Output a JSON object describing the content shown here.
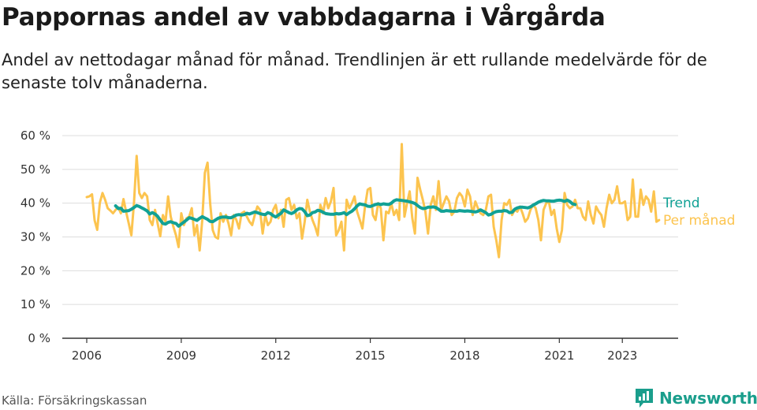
{
  "title": "Pappornas andel av vabbdagarna i Vårgårda",
  "subtitle": "Andel av nettodagar månad för månad. Trendlinjen är ett rullande medelvärde för de senaste tolv månaderna.",
  "source": "Källa: Försäkringskassan",
  "brand": "Newsworthy",
  "colors": {
    "monthly": "#fcc44f",
    "trend": "#11a195",
    "grid": "#dddddd",
    "axis": "#333333",
    "brand": "#1a9e8c"
  },
  "chart_data": {
    "type": "line",
    "ylim": [
      0,
      60
    ],
    "yticks": [
      0,
      10,
      20,
      30,
      40,
      50,
      60
    ],
    "ytick_labels": [
      "0 %",
      "10 %",
      "20 %",
      "30 %",
      "40 %",
      "50 %",
      "60 %"
    ],
    "xlim": [
      2005.5,
      2024.2
    ],
    "xticks": [
      2006,
      2009,
      2012,
      2015,
      2018,
      2021,
      2023
    ],
    "xtick_labels": [
      "2006",
      "2009",
      "2012",
      "2015",
      "2018",
      "2021",
      "2023"
    ],
    "series": [
      {
        "name": "Per månad",
        "key": "monthly",
        "start": "2006-01",
        "values": [
          41.8,
          42.0,
          42.6,
          34.9,
          32.1,
          40.1,
          43.0,
          41.0,
          38.5,
          37.8,
          37.0,
          38.0,
          38.8,
          37.0,
          41.2,
          37.5,
          34.0,
          30.5,
          40.0,
          54.0,
          43.0,
          41.5,
          43.0,
          42.0,
          35.0,
          33.5,
          38.0,
          34.0,
          30.2,
          36.5,
          34.5,
          42.0,
          36.0,
          33.0,
          30.5,
          27.0,
          37.0,
          33.5,
          35.5,
          36.0,
          38.5,
          30.5,
          33.5,
          26.0,
          35.0,
          49.0,
          52.0,
          40.0,
          32.0,
          30.0,
          29.5,
          37.0,
          34.5,
          36.5,
          34.0,
          30.5,
          36.5,
          35.0,
          32.5,
          37.0,
          37.5,
          36.0,
          34.5,
          33.5,
          36.5,
          39.0,
          38.0,
          31.0,
          36.5,
          33.5,
          34.5,
          38.0,
          39.5,
          35.5,
          38.0,
          33.0,
          41.0,
          41.5,
          38.0,
          39.5,
          35.5,
          37.0,
          29.5,
          34.5,
          41.0,
          37.5,
          35.0,
          33.0,
          30.5,
          39.5,
          37.0,
          41.5,
          38.5,
          40.5,
          44.5,
          30.5,
          32.0,
          34.5,
          26.0,
          41.0,
          38.5,
          40.0,
          42.0,
          37.5,
          35.0,
          32.5,
          39.0,
          44.0,
          44.5,
          36.5,
          35.0,
          40.0,
          38.5,
          29.0,
          37.5,
          37.0,
          40.0,
          36.5,
          38.0,
          35.0,
          57.5,
          36.0,
          40.0,
          43.5,
          35.5,
          31.0,
          47.5,
          44.0,
          41.0,
          37.5,
          31.0,
          39.5,
          42.0,
          38.0,
          46.5,
          38.0,
          40.0,
          42.0,
          40.5,
          36.5,
          37.5,
          41.5,
          43.0,
          42.0,
          39.0,
          44.0,
          42.0,
          36.5,
          40.5,
          38.5,
          37.0,
          36.5,
          38.0,
          42.0,
          42.5,
          33.0,
          29.0,
          24.0,
          35.0,
          40.0,
          39.5,
          41.0,
          36.5,
          38.0,
          37.5,
          39.0,
          37.0,
          34.5,
          35.5,
          38.0,
          39.5,
          38.5,
          35.0,
          29.0,
          38.0,
          40.0,
          40.5,
          36.5,
          38.0,
          32.5,
          28.5,
          32.0,
          43.0,
          39.5,
          38.5,
          39.0,
          41.0,
          38.5,
          38.5,
          36.0,
          35.0,
          40.5,
          36.5,
          34.0,
          39.0,
          37.5,
          36.5,
          33.0,
          38.5,
          42.5,
          40.0,
          41.0,
          45.0,
          40.0,
          40.0,
          40.5,
          35.0,
          36.0,
          47.0,
          36.0,
          36.0,
          44.0,
          39.5,
          42.0,
          41.0,
          37.5,
          43.5,
          34.5,
          35.0
        ]
      },
      {
        "name": "Trend",
        "key": "trend",
        "start": "2006-12",
        "values": [
          39.2,
          38.4,
          38.5,
          37.6,
          37.7,
          37.8,
          38.2,
          38.7,
          39.3,
          39.0,
          38.6,
          38.2,
          37.7,
          36.8,
          37.2,
          36.8,
          36.1,
          35.0,
          34.0,
          33.8,
          34.3,
          34.5,
          34.2,
          34.0,
          33.2,
          33.8,
          34.4,
          35.0,
          35.7,
          35.5,
          35.2,
          34.9,
          35.5,
          36.0,
          35.6,
          35.2,
          34.6,
          34.5,
          35.0,
          35.5,
          35.8,
          35.9,
          35.9,
          35.7,
          35.7,
          36.1,
          36.5,
          36.6,
          36.5,
          36.6,
          37.0,
          36.8,
          37.1,
          37.4,
          37.2,
          36.9,
          36.7,
          36.6,
          37.2,
          36.9,
          36.3,
          35.9,
          36.5,
          37.0,
          38.0,
          37.6,
          37.2,
          36.9,
          37.3,
          38.0,
          38.4,
          38.3,
          37.5,
          36.3,
          36.5,
          37.2,
          37.4,
          37.9,
          37.7,
          37.3,
          36.9,
          36.8,
          36.7,
          36.7,
          36.9,
          36.8,
          36.9,
          37.2,
          36.6,
          37.2,
          37.6,
          38.3,
          39.2,
          39.8,
          39.6,
          39.5,
          39.1,
          39.0,
          39.3,
          39.6,
          39.8,
          39.6,
          39.8,
          39.7,
          39.6,
          40.0,
          40.7,
          41.0,
          40.9,
          40.8,
          40.7,
          40.6,
          40.4,
          40.2,
          39.9,
          39.3,
          38.7,
          38.4,
          38.5,
          38.8,
          38.8,
          38.9,
          38.7,
          38.2,
          37.6,
          37.6,
          37.8,
          37.7,
          37.6,
          37.6,
          37.6,
          37.8,
          37.7,
          37.6,
          37.7,
          37.6,
          37.5,
          37.4,
          37.6,
          38.0,
          37.6,
          37.2,
          36.5,
          36.7,
          37.2,
          37.5,
          37.6,
          37.6,
          37.8,
          37.7,
          37.2,
          37.3,
          38.2,
          38.6,
          38.8,
          38.8,
          38.7,
          38.6,
          38.9,
          39.4,
          39.8,
          40.3,
          40.6,
          40.8,
          40.7,
          40.7,
          40.6,
          40.6,
          40.8,
          40.9,
          40.8,
          40.5,
          40.9,
          40.5,
          39.8,
          39.6
        ]
      }
    ]
  }
}
